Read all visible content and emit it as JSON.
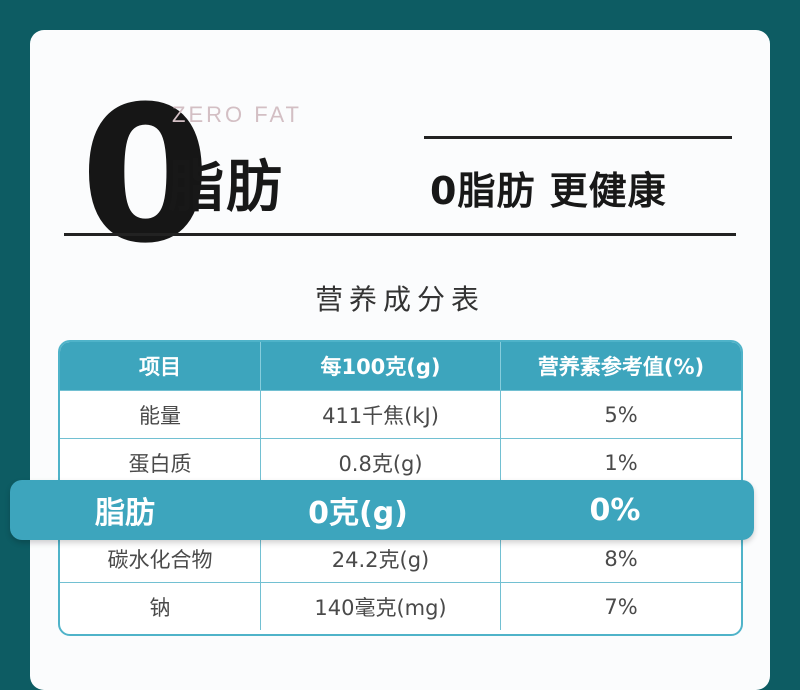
{
  "hero": {
    "zero": "0",
    "zero_fat_en": "ZERO FAT",
    "fat_cn": "脂肪",
    "slogan": "0脂肪 更健康"
  },
  "table": {
    "title": "营养成分表",
    "headers": [
      "项目",
      "每100克(g)",
      "营养素参考值(%)"
    ],
    "rows": [
      [
        "能量",
        "411千焦(kJ)",
        "5%"
      ],
      [
        "蛋白质",
        "0.8克(g)",
        "1%"
      ],
      [
        "脂肪",
        "0克(g)",
        "0%"
      ],
      [
        "碳水化合物",
        "24.2克(g)",
        "8%"
      ],
      [
        "钠",
        "140毫克(mg)",
        "7%"
      ]
    ],
    "highlight_row_index": 2
  },
  "colors": {
    "background": "#0d5c63",
    "accent": "#3da5bd",
    "card": "#fbfcfd"
  }
}
